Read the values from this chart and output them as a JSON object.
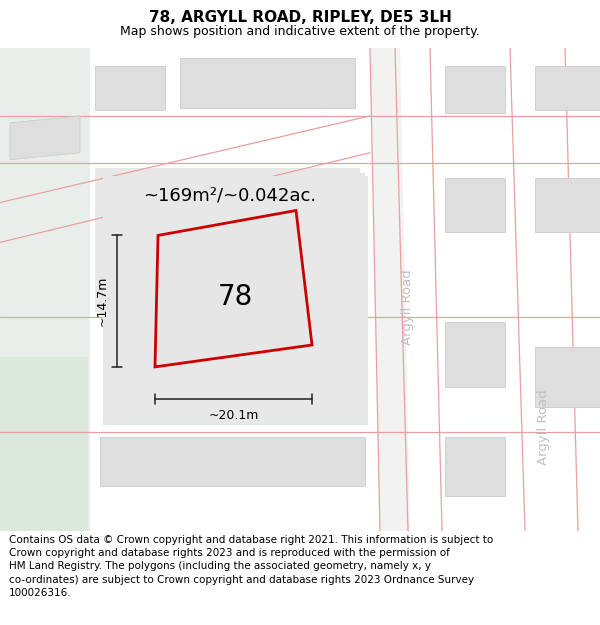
{
  "title": "78, ARGYLL ROAD, RIPLEY, DE5 3LH",
  "subtitle": "Map shows position and indicative extent of the property.",
  "footer": "Contains OS data © Crown copyright and database right 2021. This information is subject to\nCrown copyright and database rights 2023 and is reproduced with the permission of\nHM Land Registry. The polygons (including the associated geometry, namely x, y\nco-ordinates) are subject to Crown copyright and database rights 2023 Ordnance Survey\n100026316.",
  "area_label": "~169m²/~0.042ac.",
  "width_label": "~20.1m",
  "height_label": "~14.7m",
  "property_number": "78",
  "map_bg": "#f2f2f2",
  "left_bg": "#e8ede8",
  "road_line_color": "#e8a0a0",
  "building_fill": "#dedede",
  "building_edge": "#cccccc",
  "plot_fill": "#e6e6e6",
  "plot_outline": "#cc0000",
  "road_label_color": "#c0c0c0",
  "dim_color": "#222222",
  "title_fontsize": 11,
  "subtitle_fontsize": 9,
  "footer_fontsize": 7.5,
  "area_fontsize": 13,
  "number_fontsize": 20,
  "road_label_fontsize": 9.5,
  "dim_fontsize": 9
}
